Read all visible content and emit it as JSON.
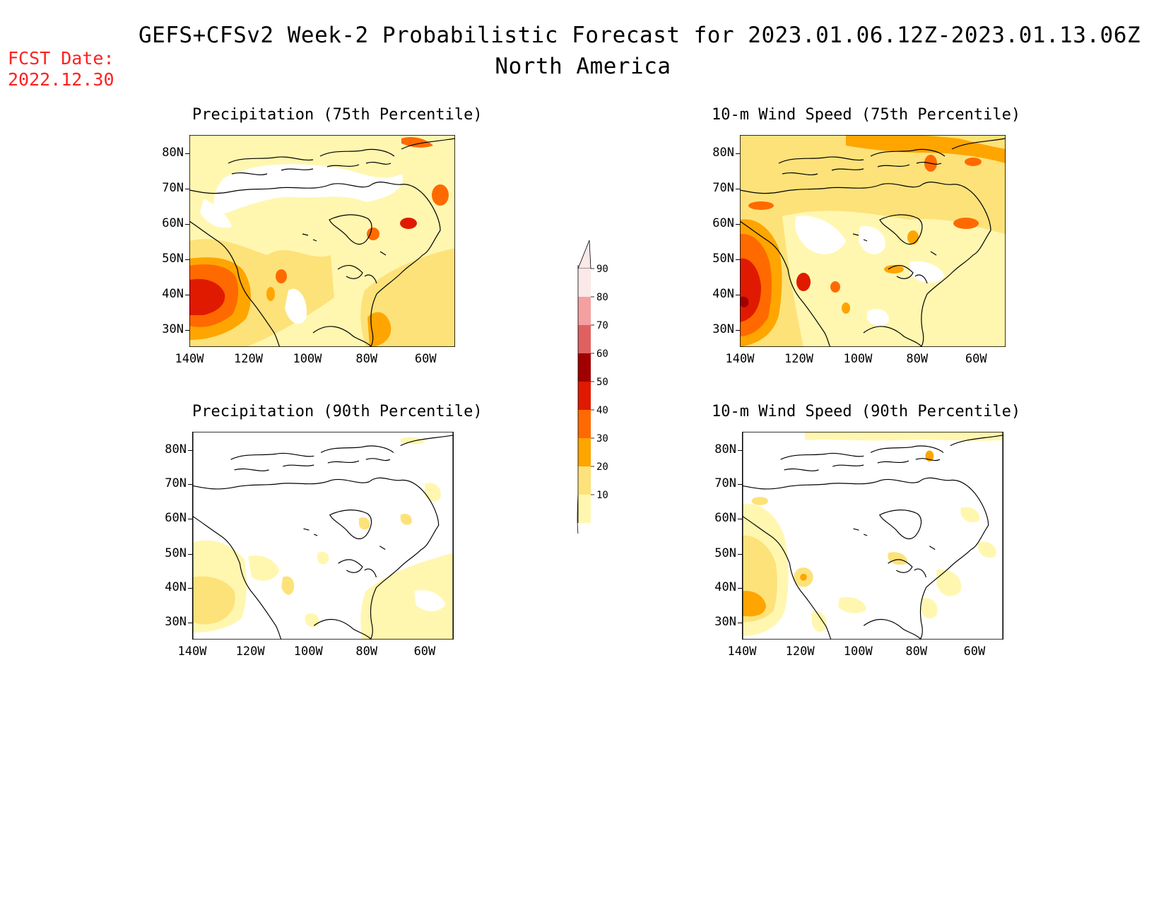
{
  "header": {
    "title_line1": "GEFS+CFSv2 Week-2 Probabilistic Forecast for 2023.01.06.12Z-2023.01.13.06Z",
    "title_line2": "North America",
    "fcst_label": "FCST Date:",
    "fcst_date": "2022.12.30"
  },
  "panels": [
    {
      "id": "precip75",
      "title": "Precipitation (75th Percentile)"
    },
    {
      "id": "wind75",
      "title": "10-m Wind Speed (75th Percentile)"
    },
    {
      "id": "precip90",
      "title": "Precipitation (90th Percentile)"
    },
    {
      "id": "wind90",
      "title": "10-m Wind Speed (90th Percentile)"
    }
  ],
  "axes": {
    "lat_labels": [
      "80N",
      "70N",
      "60N",
      "50N",
      "40N",
      "30N"
    ],
    "lon_labels": [
      "140W",
      "120W",
      "100W",
      "80W",
      "60W"
    ]
  },
  "colorbar": {
    "labels": [
      "90",
      "80",
      "70",
      "60",
      "50",
      "40",
      "30",
      "20",
      "10"
    ],
    "colors": [
      "#fbe8e8",
      "#f4a0a0",
      "#e06060",
      "#a00000",
      "#e01a00",
      "#ff6a00",
      "#ffa500",
      "#fde27a",
      "#fff7b0"
    ]
  }
}
